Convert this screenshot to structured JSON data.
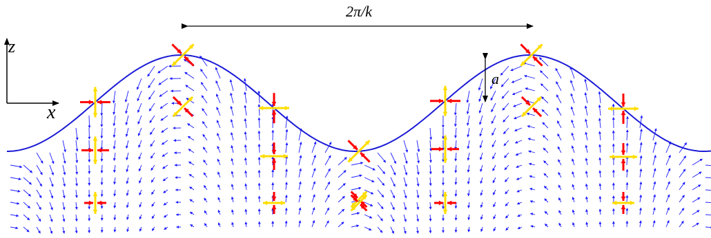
{
  "labels": {
    "wavelength": "2π/k",
    "amplitude": "a",
    "z_axis": "z",
    "x_axis": "x"
  }
}
